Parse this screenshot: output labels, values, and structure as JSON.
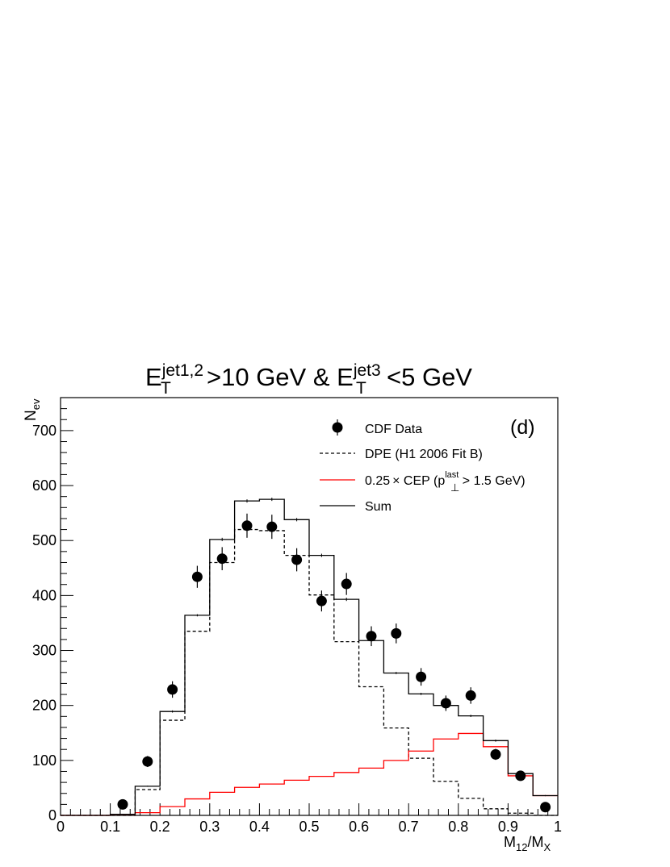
{
  "chart_data": {
    "type": "histogram",
    "title": {
      "base": "E",
      "sup1": "jet1,2",
      "sub1": "T",
      "mid": ">10 GeV & E",
      "sup2": "jet3",
      "sub2": "T",
      "end": "<5 GeV"
    },
    "panel_label": "(d)",
    "xlabel": {
      "main": "M",
      "sub1": "12",
      "slash": "/M",
      "sub2": "X"
    },
    "ylabel": {
      "main": "N",
      "sub": "ev"
    },
    "xlim": [
      0,
      1
    ],
    "ylim": [
      0,
      760
    ],
    "x_ticks": [
      "0",
      "0.1",
      "0.2",
      "0.3",
      "0.4",
      "0.5",
      "0.6",
      "0.7",
      "0.8",
      "0.9",
      "1"
    ],
    "y_ticks": [
      "0",
      "100",
      "200",
      "300",
      "400",
      "500",
      "600",
      "700"
    ],
    "bin_edges": [
      0,
      0.05,
      0.1,
      0.15,
      0.2,
      0.25,
      0.3,
      0.35,
      0.4,
      0.45,
      0.5,
      0.55,
      0.6,
      0.65,
      0.7,
      0.75,
      0.8,
      0.85,
      0.9,
      0.95,
      1.0
    ],
    "legend": {
      "placement": "top-right",
      "entries": [
        {
          "key": "data",
          "label": "CDF Data",
          "style": "marker",
          "color": "#000000"
        },
        {
          "key": "dpe",
          "label": "DPE (H1 2006 Fit B)",
          "style": "dashed",
          "color": "#000000"
        },
        {
          "key": "cep",
          "label_pre": "0.25",
          "label_times": "×",
          "label_mid": " CEP (p",
          "label_sup": "last",
          "label_sub": "⊥",
          "label_post": " > 1.5 GeV)",
          "style": "solid",
          "color": "#ff0000"
        },
        {
          "key": "sum",
          "label": "Sum",
          "style": "solid",
          "color": "#000000"
        }
      ]
    },
    "series": [
      {
        "name": "DPE (H1 2006 Fit B)",
        "style": "dashed",
        "color": "#000000",
        "values": [
          0,
          0,
          0,
          47,
          173,
          335,
          460,
          520,
          518,
          473,
          401,
          316,
          234,
          159,
          104,
          62,
          31,
          12,
          4,
          0
        ]
      },
      {
        "name": "0.25 × CEP (p⊥last > 1.5 GeV)",
        "style": "solid",
        "color": "#ff0000",
        "values": [
          0,
          0,
          2,
          5,
          16,
          30,
          42,
          51,
          57,
          64,
          71,
          78,
          86,
          100,
          117,
          139,
          149,
          125,
          72,
          36
        ]
      },
      {
        "name": "Sum",
        "style": "solid",
        "color": "#000000",
        "values": [
          0,
          0,
          2,
          53,
          189,
          364,
          502,
          572,
          575,
          538,
          473,
          393,
          318,
          259,
          221,
          200,
          181,
          136,
          76,
          36
        ],
        "errors": [
          0,
          0,
          0,
          1,
          2,
          2,
          3,
          3,
          3,
          3,
          3,
          3,
          2,
          2,
          2,
          2,
          2,
          2,
          2,
          1
        ]
      },
      {
        "name": "CDF Data",
        "style": "points",
        "color": "#000000",
        "x": [
          0.125,
          0.175,
          0.225,
          0.275,
          0.325,
          0.375,
          0.425,
          0.475,
          0.525,
          0.575,
          0.625,
          0.675,
          0.725,
          0.775,
          0.825,
          0.875,
          0.925,
          0.975
        ],
        "y": [
          20,
          98,
          229,
          434,
          467,
          527,
          525,
          465,
          390,
          421,
          326,
          331,
          252,
          204,
          218,
          111,
          72,
          15
        ],
        "yerr": [
          5,
          10,
          15,
          20,
          21,
          22,
          22,
          21,
          19,
          20,
          18,
          18,
          16,
          14,
          15,
          10,
          9,
          4
        ]
      }
    ]
  }
}
